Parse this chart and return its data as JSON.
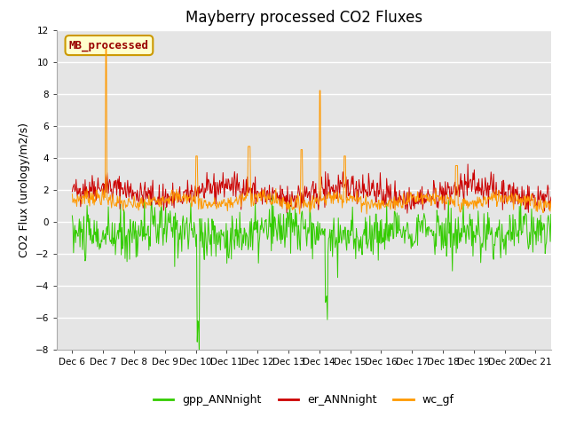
{
  "title": "Mayberry processed CO2 Fluxes",
  "ylabel": "CO2 Flux (urology/m2/s)",
  "xlim_days": [
    5.5,
    21.5
  ],
  "ylim": [
    -8,
    12
  ],
  "yticks": [
    -8,
    -6,
    -4,
    -2,
    0,
    2,
    4,
    6,
    8,
    10,
    12
  ],
  "xtick_days": [
    6,
    7,
    8,
    9,
    10,
    11,
    12,
    13,
    14,
    15,
    16,
    17,
    18,
    19,
    20,
    21
  ],
  "xtick_labels": [
    "Dec 6",
    "Dec 7",
    "Dec 8",
    "Dec 9",
    "Dec 10",
    "Dec 11",
    "Dec 12",
    "Dec 13",
    "Dec 14",
    "Dec 15",
    "Dec 16",
    "Dec 17",
    "Dec 18",
    "Dec 19",
    "Dec 20",
    "Dec 21"
  ],
  "legend_labels": [
    "gpp_ANNnight",
    "er_ANNnight",
    "wc_gf"
  ],
  "legend_colors": [
    "#33cc00",
    "#cc0000",
    "#ff9900"
  ],
  "inset_label": "MB_processed",
  "inset_label_color": "#990000",
  "inset_bg_color": "#ffffcc",
  "inset_border_color": "#cc9900",
  "bg_color": "#e5e5e5",
  "grid_color": "#ffffff",
  "title_fontsize": 12,
  "ylabel_fontsize": 9,
  "tick_fontsize": 7.5,
  "legend_fontsize": 9,
  "line_width": 0.7
}
